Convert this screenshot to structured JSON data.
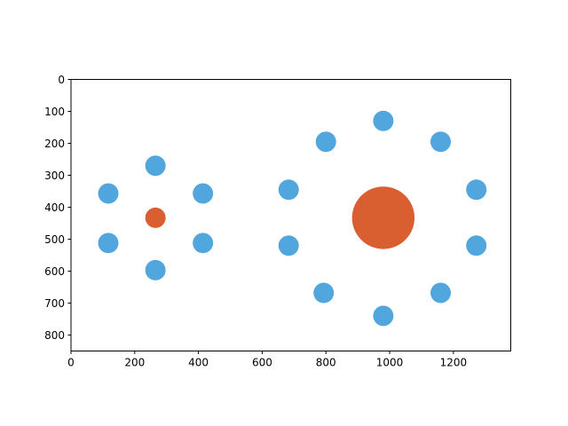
{
  "chart_data": {
    "type": "scatter",
    "title": "",
    "xlabel": "",
    "ylabel": "",
    "xlim": [
      0,
      1380
    ],
    "ylim": [
      850,
      0
    ],
    "y_inverted": true,
    "grid": false,
    "xticks": [
      0,
      200,
      400,
      600,
      800,
      1000,
      1200
    ],
    "yticks": [
      0,
      100,
      200,
      300,
      400,
      500,
      600,
      700,
      800
    ],
    "colors": {
      "center": "#d95f30",
      "surround": "#52a6de"
    },
    "groups": [
      {
        "center": {
          "x": 265,
          "y": 433,
          "r": 32
        },
        "surround": [
          {
            "x": 265,
            "y": 270,
            "r": 32
          },
          {
            "x": 414,
            "y": 357,
            "r": 32
          },
          {
            "x": 414,
            "y": 512,
            "r": 32
          },
          {
            "x": 265,
            "y": 597,
            "r": 32
          },
          {
            "x": 117,
            "y": 512,
            "r": 32
          },
          {
            "x": 117,
            "y": 357,
            "r": 32
          }
        ]
      },
      {
        "center": {
          "x": 980,
          "y": 433,
          "r": 98
        },
        "surround": [
          {
            "x": 980,
            "y": 130,
            "r": 32
          },
          {
            "x": 1160,
            "y": 195,
            "r": 32
          },
          {
            "x": 1272,
            "y": 345,
            "r": 32
          },
          {
            "x": 1272,
            "y": 520,
            "r": 32
          },
          {
            "x": 1160,
            "y": 668,
            "r": 32
          },
          {
            "x": 980,
            "y": 740,
            "r": 32
          },
          {
            "x": 793,
            "y": 668,
            "r": 32
          },
          {
            "x": 683,
            "y": 520,
            "r": 32
          },
          {
            "x": 683,
            "y": 345,
            "r": 32
          },
          {
            "x": 800,
            "y": 195,
            "r": 32
          }
        ]
      }
    ]
  }
}
